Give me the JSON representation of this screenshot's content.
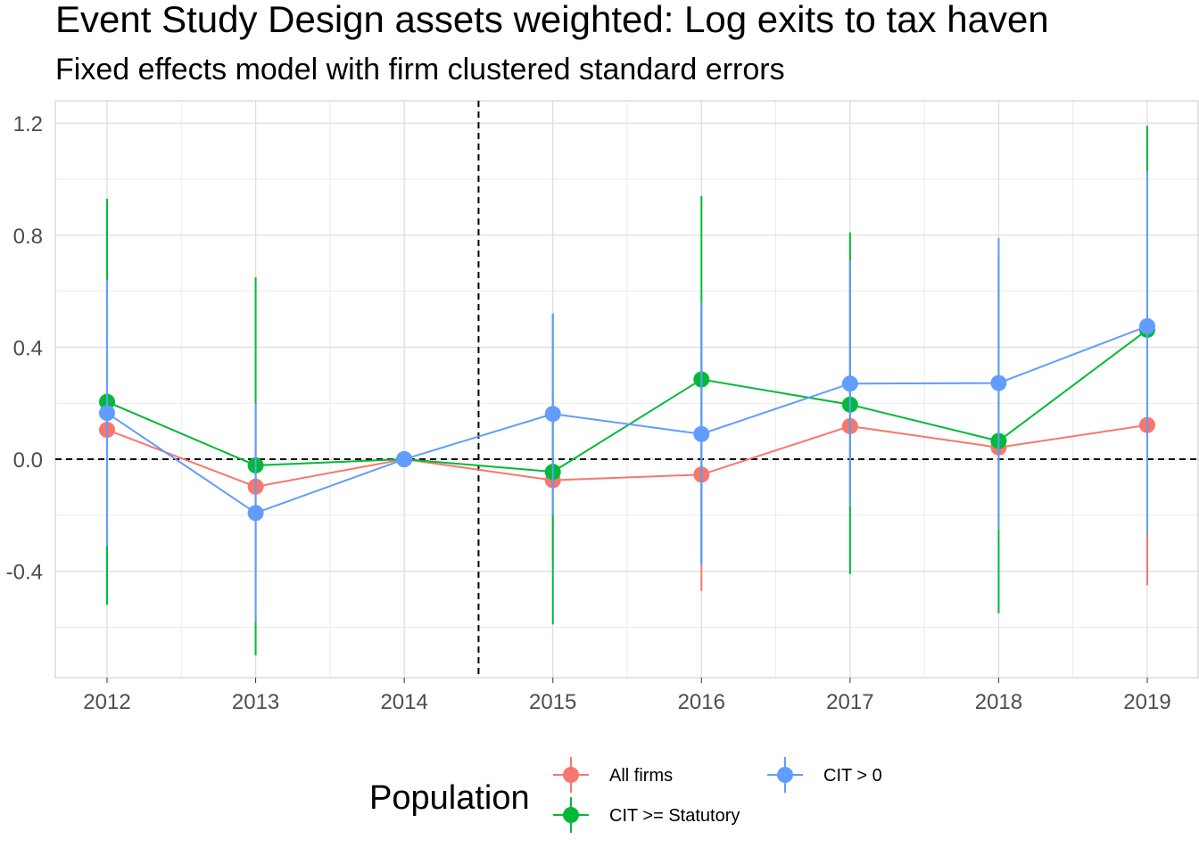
{
  "chart_data": {
    "type": "line",
    "title": "Event Study Design assets weighted: Log exits to tax haven",
    "subtitle": "Fixed effects model with firm clustered standard errors",
    "xlabel": "",
    "ylabel": "",
    "x": [
      2012,
      2013,
      2014,
      2015,
      2016,
      2017,
      2018,
      2019
    ],
    "x_tick_labels": [
      "2012",
      "2013",
      "2014",
      "2015",
      "2016",
      "2017",
      "2018",
      "2019"
    ],
    "ylim": [
      -0.78,
      1.28
    ],
    "y_ticks": [
      -0.4,
      0.0,
      0.4,
      0.8,
      1.2
    ],
    "y_tick_labels": [
      "-0.4",
      "0.0",
      "0.4",
      "0.8",
      "1.2"
    ],
    "grid": true,
    "reference_lines": {
      "horizontal_y": 0.0,
      "vertical_x": 2014.5,
      "style": "dashed"
    },
    "legend": {
      "title": "Population",
      "placement": "bottom"
    },
    "series": [
      {
        "name": "All firms",
        "color": "#F8766D",
        "values": [
          0.105,
          -0.098,
          0.0,
          -0.075,
          -0.055,
          0.118,
          0.042,
          0.122
        ],
        "lower": [
          -0.3,
          -0.4,
          0.0,
          -0.38,
          -0.47,
          -0.18,
          -0.24,
          -0.45
        ],
        "upper": [
          0.62,
          0.2,
          0.0,
          0.23,
          0.55,
          0.72,
          0.78,
          0.95
        ]
      },
      {
        "name": "CIT >= Statutory",
        "color": "#00BA38",
        "values": [
          0.205,
          -0.022,
          0.0,
          -0.045,
          0.285,
          0.195,
          0.065,
          0.462
        ],
        "lower": [
          -0.52,
          -0.7,
          0.0,
          -0.59,
          -0.37,
          -0.41,
          -0.55,
          -0.08
        ],
        "upper": [
          0.93,
          0.65,
          0.0,
          0.52,
          0.94,
          0.81,
          0.72,
          1.19
        ]
      },
      {
        "name": "CIT > 0",
        "color": "#619CFF",
        "values": [
          0.165,
          -0.192,
          0.0,
          0.162,
          0.09,
          0.27,
          0.272,
          0.475
        ],
        "lower": [
          -0.31,
          -0.58,
          0.0,
          -0.2,
          -0.38,
          -0.17,
          -0.25,
          -0.27
        ],
        "upper": [
          0.64,
          0.2,
          0.0,
          0.52,
          0.56,
          0.71,
          0.79,
          1.03
        ]
      }
    ]
  }
}
